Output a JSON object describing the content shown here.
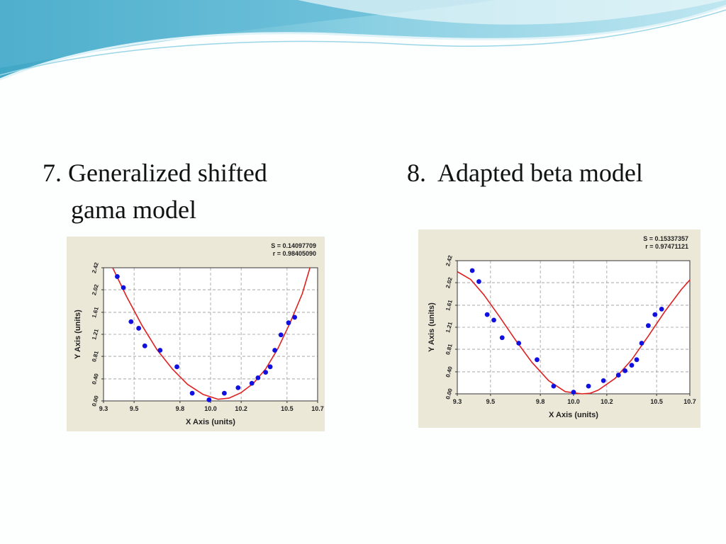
{
  "slide": {
    "left_heading": {
      "number": "7.",
      "line1": "Generalized shifted",
      "line2": "gama model"
    },
    "right_heading": {
      "number": "8.",
      "text": "Adapted beta model"
    }
  },
  "colors": {
    "banner_light": "#d6eef5",
    "banner_mid": "#8fd0e2",
    "banner_dark": "#3da6c4",
    "chart_background": "#ece8d8",
    "plot_background": "#ffffff",
    "gridline": "#9a9a9a",
    "points": "#1010e0",
    "fit_curve": "#e02020"
  },
  "chart_data": [
    {
      "type": "scatter",
      "xlabel": "X Axis (units)",
      "ylabel": "Y Axis (units)",
      "xlim": [
        9.3,
        10.7
      ],
      "ylim": [
        0,
        2.42
      ],
      "x_ticks": [
        "9.3",
        "9.5",
        "9.8",
        "10.0",
        "10.2",
        "10.5",
        "10.7"
      ],
      "x_tick_values": [
        9.3,
        9.5,
        9.8,
        10.0,
        10.2,
        10.5,
        10.7
      ],
      "y_ticks": [
        "0.00",
        "0.40",
        "0.81",
        "1.21",
        "1.61",
        "2.02",
        "2.42"
      ],
      "y_tick_values": [
        0,
        0.4,
        0.81,
        1.21,
        1.61,
        2.02,
        2.42
      ],
      "grid": true,
      "stats": [
        "S = 0.14097709",
        "r = 0.98405090"
      ],
      "points": [
        [
          9.39,
          2.26
        ],
        [
          9.43,
          2.06
        ],
        [
          9.48,
          1.44
        ],
        [
          9.53,
          1.32
        ],
        [
          9.57,
          1.0
        ],
        [
          9.67,
          0.92
        ],
        [
          9.78,
          0.62
        ],
        [
          9.88,
          0.14
        ],
        [
          9.99,
          0.02
        ],
        [
          10.09,
          0.14
        ],
        [
          10.18,
          0.24
        ],
        [
          10.27,
          0.32
        ],
        [
          10.31,
          0.42
        ],
        [
          10.36,
          0.52
        ],
        [
          10.39,
          0.62
        ],
        [
          10.42,
          0.92
        ],
        [
          10.46,
          1.2
        ],
        [
          10.51,
          1.42
        ],
        [
          10.55,
          1.52
        ]
      ],
      "fit": {
        "name": "fitted curve",
        "points": [
          [
            9.36,
            2.42
          ],
          [
            9.45,
            1.9
          ],
          [
            9.55,
            1.38
          ],
          [
            9.65,
            0.93
          ],
          [
            9.75,
            0.58
          ],
          [
            9.85,
            0.3
          ],
          [
            9.95,
            0.12
          ],
          [
            10.05,
            0.03
          ],
          [
            10.12,
            0.05
          ],
          [
            10.2,
            0.15
          ],
          [
            10.28,
            0.32
          ],
          [
            10.36,
            0.58
          ],
          [
            10.44,
            0.95
          ],
          [
            10.52,
            1.42
          ],
          [
            10.6,
            1.95
          ],
          [
            10.65,
            2.42
          ]
        ]
      }
    },
    {
      "type": "scatter",
      "xlabel": "X Axis (units)",
      "ylabel": "Y Axis (units)",
      "xlim": [
        9.3,
        10.7
      ],
      "ylim": [
        0,
        2.42
      ],
      "x_ticks": [
        "9.3",
        "9.5",
        "9.8",
        "10.0",
        "10.2",
        "10.5",
        "10.7"
      ],
      "x_tick_values": [
        9.3,
        9.5,
        9.8,
        10.0,
        10.2,
        10.5,
        10.7
      ],
      "y_ticks": [
        "0.00",
        "0.40",
        "0.81",
        "1.21",
        "1.61",
        "2.02",
        "2.42"
      ],
      "y_tick_values": [
        0,
        0.4,
        0.81,
        1.21,
        1.61,
        2.02,
        2.42
      ],
      "grid": true,
      "stats": [
        "S = 0.15337357",
        "r = 0.97471121"
      ],
      "points": [
        [
          9.39,
          2.24
        ],
        [
          9.43,
          2.04
        ],
        [
          9.48,
          1.44
        ],
        [
          9.52,
          1.34
        ],
        [
          9.57,
          1.02
        ],
        [
          9.67,
          0.92
        ],
        [
          9.78,
          0.62
        ],
        [
          9.88,
          0.14
        ],
        [
          10.0,
          0.03
        ],
        [
          10.09,
          0.14
        ],
        [
          10.18,
          0.24
        ],
        [
          10.27,
          0.34
        ],
        [
          10.31,
          0.42
        ],
        [
          10.35,
          0.52
        ],
        [
          10.38,
          0.62
        ],
        [
          10.41,
          0.92
        ],
        [
          10.45,
          1.24
        ],
        [
          10.49,
          1.44
        ],
        [
          10.53,
          1.54
        ]
      ],
      "fit": {
        "name": "fitted curve",
        "points": [
          [
            9.3,
            2.22
          ],
          [
            9.38,
            2.08
          ],
          [
            9.46,
            1.8
          ],
          [
            9.55,
            1.42
          ],
          [
            9.65,
            0.98
          ],
          [
            9.75,
            0.57
          ],
          [
            9.85,
            0.24
          ],
          [
            9.95,
            0.04
          ],
          [
            10.05,
            0.0
          ],
          [
            10.1,
            0.01
          ],
          [
            10.15,
            0.07
          ],
          [
            10.25,
            0.28
          ],
          [
            10.35,
            0.62
          ],
          [
            10.45,
            1.05
          ],
          [
            10.55,
            1.5
          ],
          [
            10.65,
            1.9
          ],
          [
            10.7,
            2.07
          ]
        ]
      }
    }
  ]
}
